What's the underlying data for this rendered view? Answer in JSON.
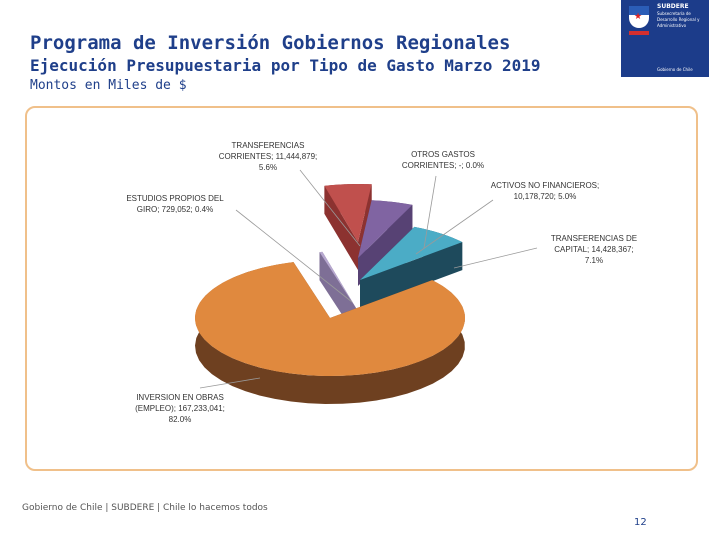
{
  "header": {
    "title": "Programa de Inversión Gobiernos Regionales",
    "subtitle": "Ejecución Presupuestaria por Tipo de Gasto Marzo 2019",
    "unit": "Montos en Miles de $"
  },
  "logo": {
    "name": "SUBDERE",
    "subtitle": "Subsecretaría de Desarrollo Regional y Administrativo",
    "government": "Gobierno de Chile"
  },
  "footer": {
    "text": "Gobierno de Chile | SUBDERE | Chile lo hacemos todos",
    "page_number": "12"
  },
  "chart_data": {
    "type": "pie",
    "style": "3d-exploded",
    "slices": [
      {
        "name": "TRANSFERENCIAS CORRIENTES",
        "value": 11444879,
        "percent": 5.6,
        "label_lines": [
          "TRANSFERENCIAS",
          "CORRIENTES; 11,444,879;",
          "5.6%"
        ],
        "color": "#c0504d",
        "side": "#8c3230"
      },
      {
        "name": "OTROS GASTOS CORRIENTES",
        "value": 0,
        "percent": 0.0,
        "label_lines": [
          "OTROS GASTOS",
          "CORRIENTES; -; 0.0%"
        ],
        "color": "#9bbb59",
        "side": "#6f8a3d"
      },
      {
        "name": "ACTIVOS NO FINANCIEROS",
        "value": 10178720,
        "percent": 5.0,
        "label_lines": [
          "ACTIVOS NO FINANCIEROS;",
          "10,178,720; 5.0%"
        ],
        "color": "#8064a2",
        "side": "#574274"
      },
      {
        "name": "TRANSFERENCIAS DE CAPITAL",
        "value": 14428367,
        "percent": 7.1,
        "label_lines": [
          "TRANSFERENCIAS DE",
          "CAPITAL; 14,428,367;",
          "7.1%"
        ],
        "color": "#4bacc6",
        "side": "#1e4a5c"
      },
      {
        "name": "INVERSION EN OBRAS (EMPLEO)",
        "value": 167233041,
        "percent": 82.0,
        "label_lines": [
          "INVERSION EN OBRAS",
          "(EMPLEO); 167,233,041;",
          "82.0%"
        ],
        "color": "#e0893e",
        "side": "#6e4020"
      },
      {
        "name": "ESTUDIOS PROPIOS DEL GIRO",
        "value": 729052,
        "percent": 0.4,
        "label_lines": [
          "ESTUDIOS PROPIOS DEL",
          "GIRO; 729,052; 0.4%"
        ],
        "color": "#b7a8cf",
        "side": "#7e6f96"
      }
    ]
  }
}
